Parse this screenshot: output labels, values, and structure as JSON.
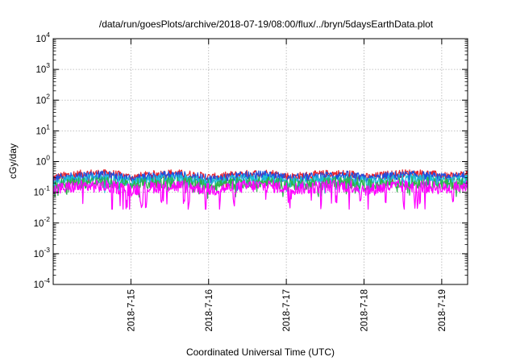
{
  "chart_data": {
    "type": "line",
    "title": "/data/run/goesPlots/archive/2018-07-19/08:00/flux/../bryn/5daysEarthData.plot",
    "xlabel": "Coordinated Universal Time (UTC)",
    "ylabel": "cGy/day",
    "y_scale": "log",
    "ylim": [
      0.0001,
      10000
    ],
    "y_ticks": [
      {
        "base": "10",
        "exp": "-4",
        "value": 0.0001
      },
      {
        "base": "10",
        "exp": "-3",
        "value": 0.001
      },
      {
        "base": "10",
        "exp": "-2",
        "value": 0.01
      },
      {
        "base": "10",
        "exp": "-1",
        "value": 0.1
      },
      {
        "base": "10",
        "exp": "0",
        "value": 1
      },
      {
        "base": "10",
        "exp": "1",
        "value": 10
      },
      {
        "base": "10",
        "exp": "2",
        "value": 100
      },
      {
        "base": "10",
        "exp": "3",
        "value": 1000
      },
      {
        "base": "10",
        "exp": "4",
        "value": 10000
      }
    ],
    "xlim": [
      "2018-07-14T00:00",
      "2018-07-19T08:00"
    ],
    "x_ticks": [
      "2018-7-15",
      "2018-7-16",
      "2018-7-17",
      "2018-7-18",
      "2018-7-19"
    ],
    "grid": true,
    "legend": "none",
    "series": [
      {
        "color": "#e8202a",
        "baseline": [
          0.3,
          0.38,
          0.42,
          0.4,
          0.3,
          0.38,
          0.42,
          0.38,
          0.3,
          0.36,
          0.4,
          0.42,
          0.32,
          0.36,
          0.4,
          0.4,
          0.3,
          0.38,
          0.42,
          0.4,
          0.32,
          0.4
        ]
      },
      {
        "color": "#1f4fe0",
        "baseline": [
          0.26,
          0.33,
          0.36,
          0.34,
          0.26,
          0.33,
          0.36,
          0.33,
          0.26,
          0.31,
          0.35,
          0.36,
          0.28,
          0.31,
          0.35,
          0.35,
          0.26,
          0.33,
          0.36,
          0.34,
          0.28,
          0.35
        ]
      },
      {
        "color": "#1fbfd6",
        "baseline": [
          0.2,
          0.25,
          0.27,
          0.26,
          0.2,
          0.25,
          0.27,
          0.25,
          0.2,
          0.24,
          0.26,
          0.27,
          0.21,
          0.24,
          0.26,
          0.26,
          0.2,
          0.25,
          0.27,
          0.26,
          0.21,
          0.26
        ]
      },
      {
        "color": "#2db34a",
        "baseline": [
          0.17,
          0.2,
          0.21,
          0.2,
          0.17,
          0.2,
          0.21,
          0.2,
          0.17,
          0.19,
          0.21,
          0.21,
          0.18,
          0.19,
          0.21,
          0.21,
          0.17,
          0.2,
          0.21,
          0.2,
          0.18,
          0.21
        ]
      },
      {
        "color": "#ff00ff",
        "baseline": [
          0.12,
          0.15,
          0.16,
          0.15,
          0.12,
          0.15,
          0.16,
          0.15,
          0.12,
          0.14,
          0.16,
          0.16,
          0.13,
          0.14,
          0.16,
          0.16,
          0.12,
          0.15,
          0.16,
          0.15,
          0.13,
          0.16
        ],
        "min": 0.028
      }
    ]
  }
}
